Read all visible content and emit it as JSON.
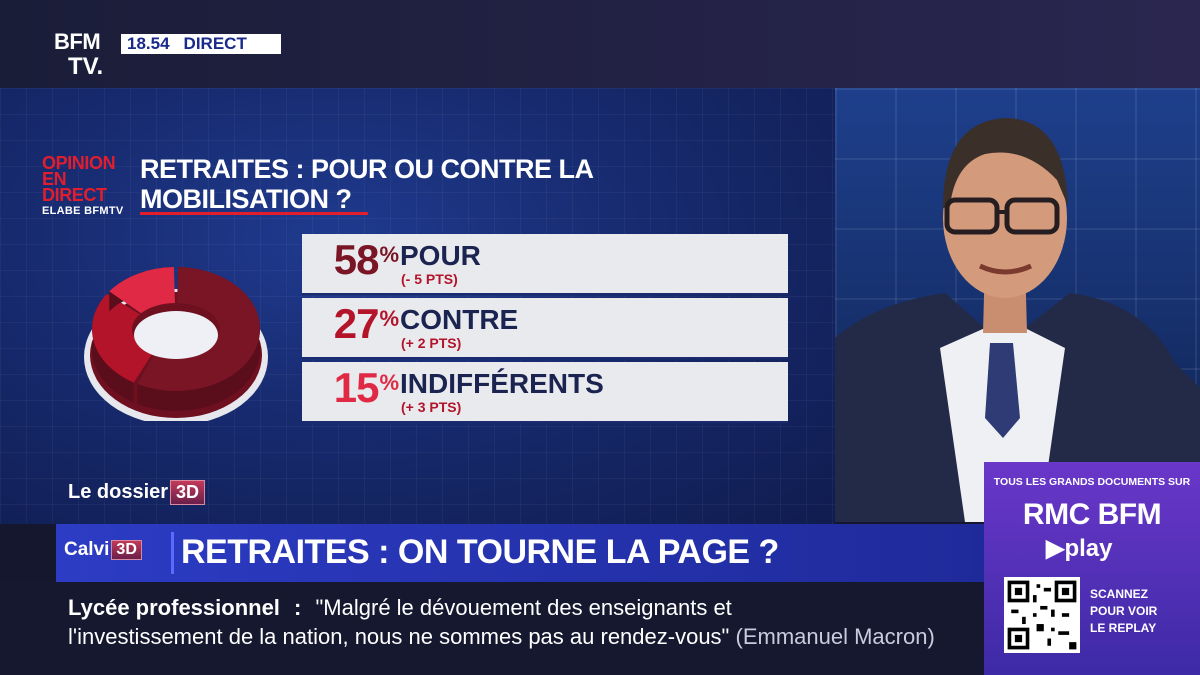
{
  "channel": {
    "logo_top": "BFM",
    "logo_bottom": "TV.",
    "time": "18.54",
    "live": "DIRECT"
  },
  "poll": {
    "badge_line1": "OPINION",
    "badge_line2": "EN DIRECT",
    "badge_source": "ELABE BFMTV",
    "title_line1": "RETRAITES : POUR OU CONTRE LA",
    "title_line2": "MOBILISATION ?"
  },
  "chart_data": {
    "type": "pie",
    "title": "RETRAITES : POUR OU CONTRE LA MOBILISATION ?",
    "categories": [
      "POUR",
      "CONTRE",
      "INDIFFÉRENTS"
    ],
    "values": [
      58,
      27,
      15
    ],
    "unit": "%",
    "changes": [
      "(- 5 PTS)",
      "(+ 2 PTS)",
      "(+ 3 PTS)"
    ],
    "colors": [
      "#7a1526",
      "#b3142a",
      "#e02a45"
    ]
  },
  "rows": [
    {
      "pct": "58",
      "label": "POUR",
      "delta": "(- 5 PTS)",
      "color": "#7a1526"
    },
    {
      "pct": "27",
      "label": "CONTRE",
      "delta": "(+ 2 PTS)",
      "color": "#b3142a"
    },
    {
      "pct": "15",
      "label": "INDIFFÉRENTS",
      "delta": "(+ 3 PTS)",
      "color": "#e02a45"
    }
  ],
  "pct_sign": "%",
  "segment": {
    "dossier": "Le dossier",
    "dossier_badge": "3D",
    "show": "Calvi",
    "show_badge": "3D"
  },
  "headline": "RETRAITES : ON TOURNE LA PAGE ?",
  "ticker": {
    "topic": "Lycée professionnel",
    "sep": ":",
    "quote_part1": "\"Malgré le dévouement des enseignants et",
    "quote_part2": "l'investissement de la nation, nous ne sommes pas au rendez-vous\"",
    "author": "(Emmanuel Macron)"
  },
  "promo": {
    "top": "TOUS LES GRANDS DOCUMENTS SUR",
    "brand": "RMC BFM",
    "play": "▶play",
    "scan1": "SCANNEZ",
    "scan2": "POUR VOIR",
    "scan3": "LE REPLAY"
  }
}
